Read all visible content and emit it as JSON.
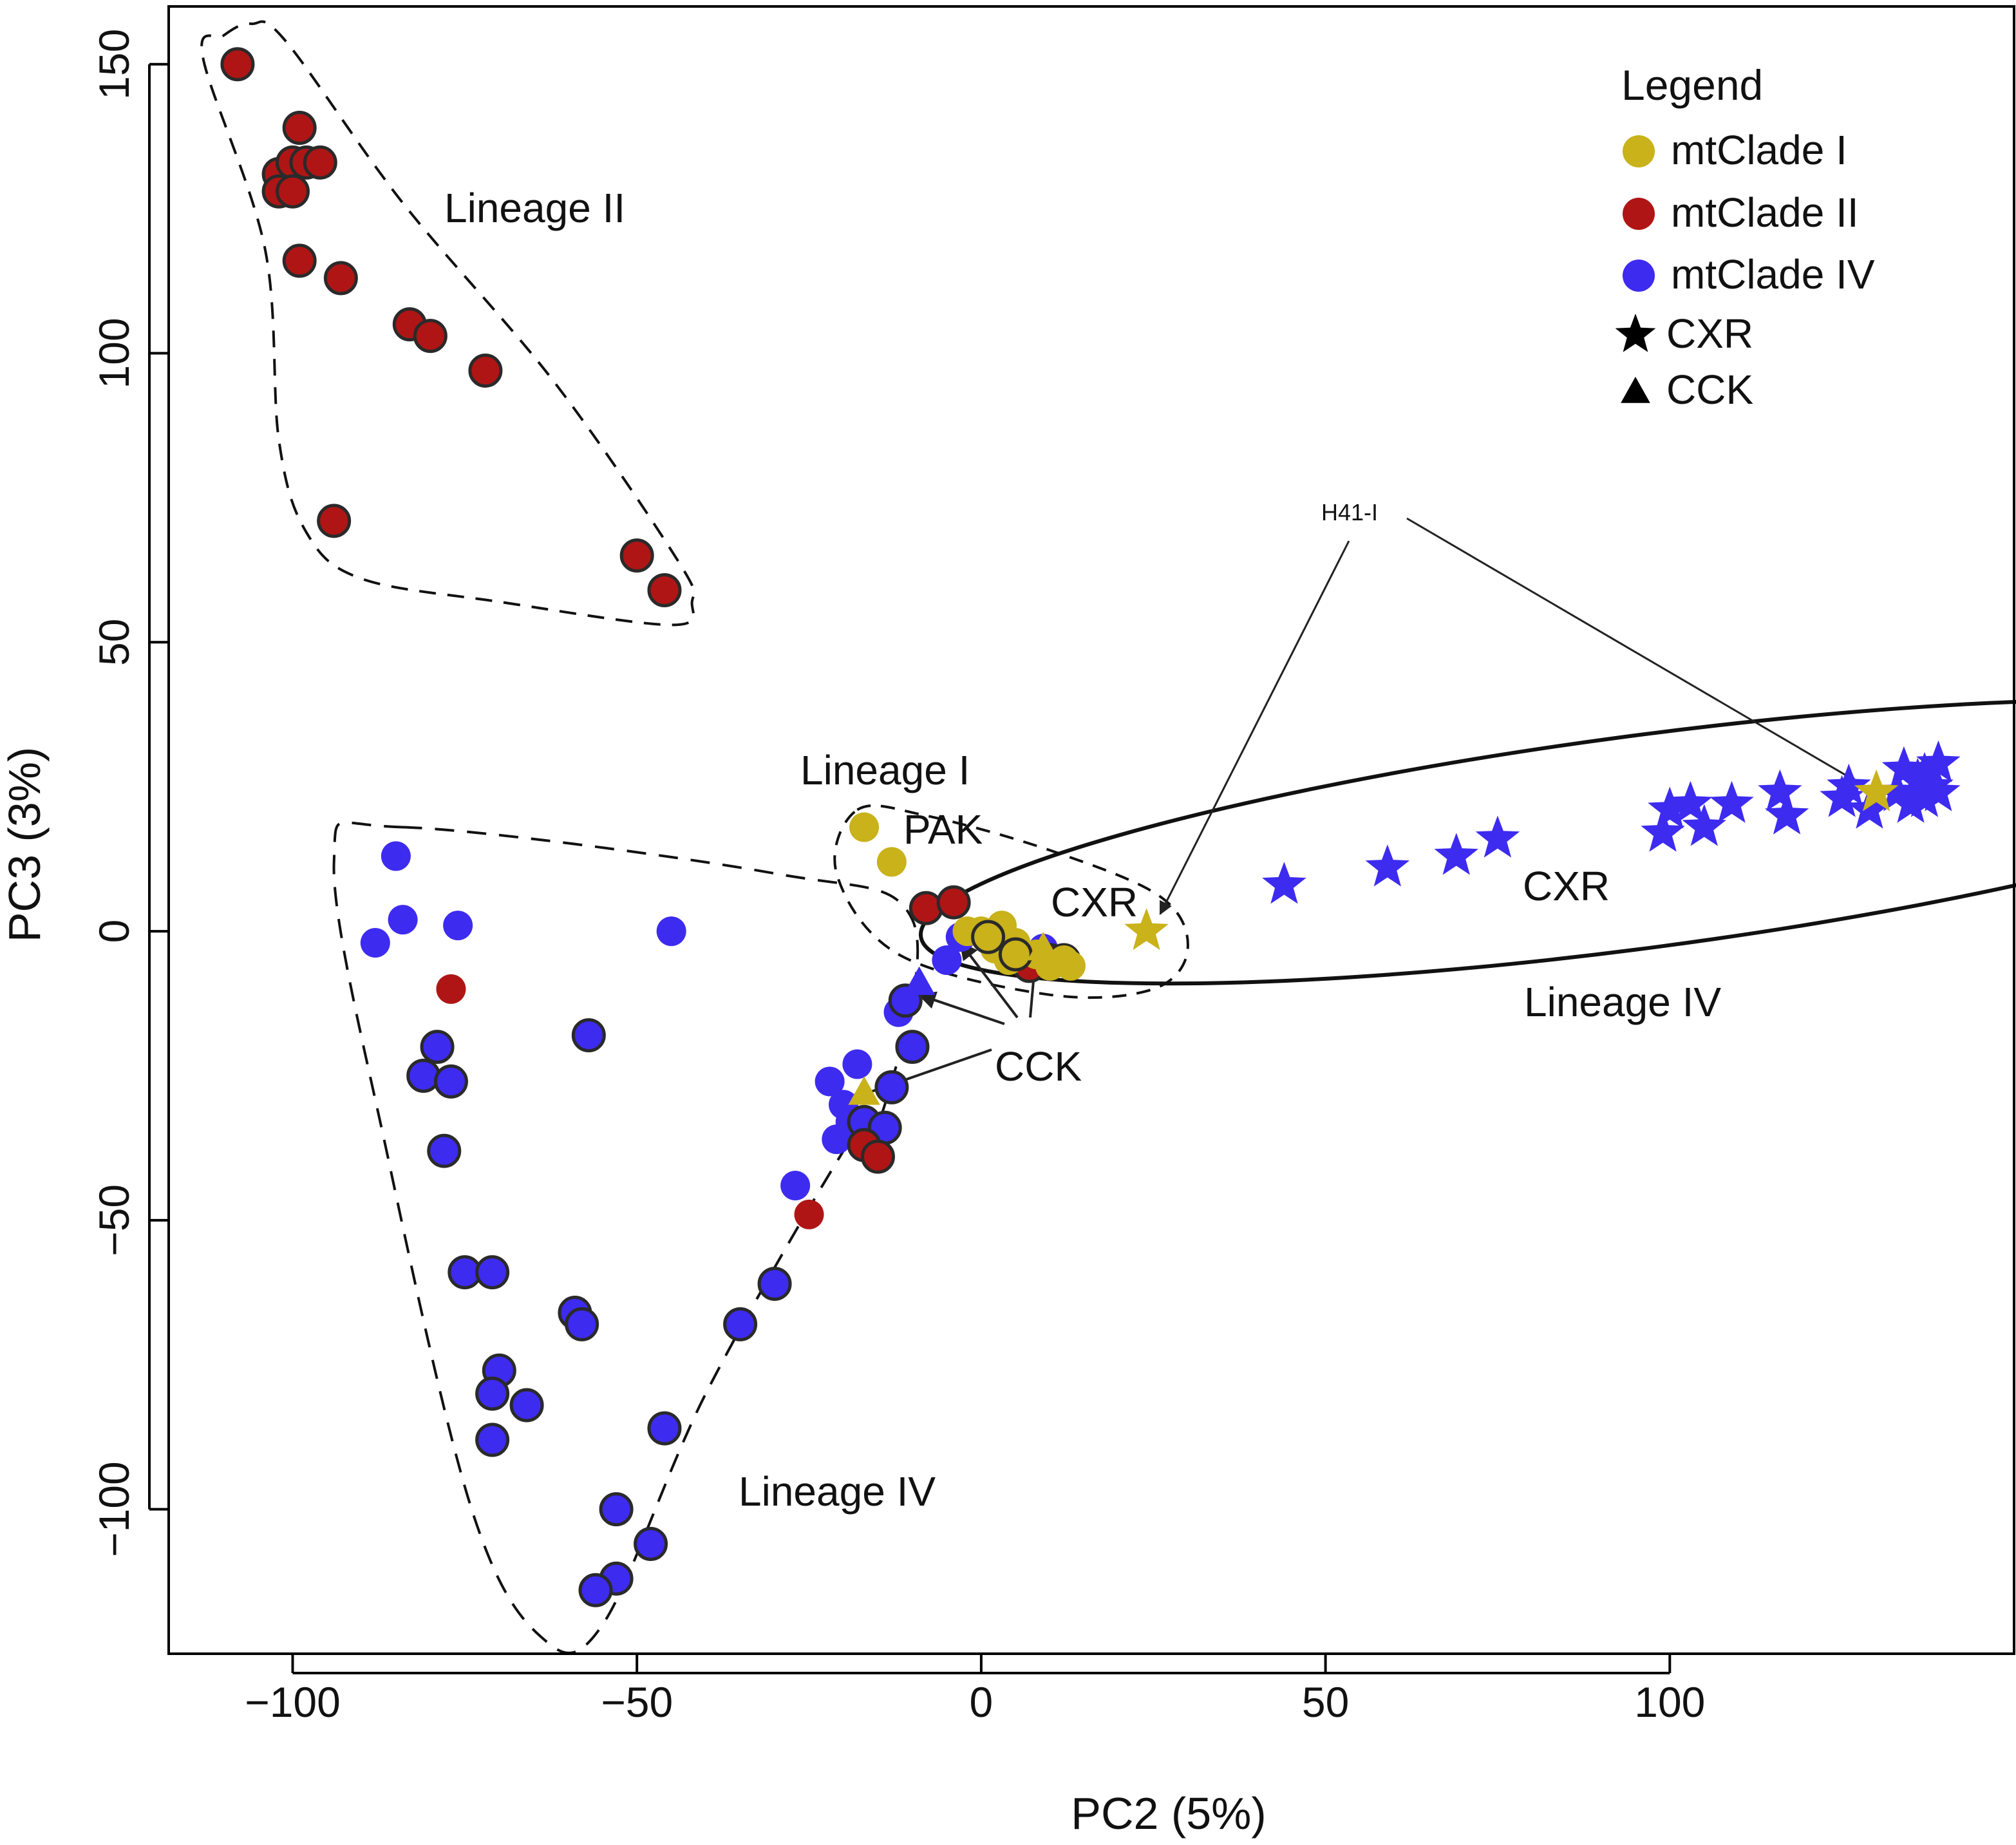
{
  "chart_data": {
    "type": "scatter",
    "title": "",
    "xlabel": "PC2 (5%)",
    "ylabel": "PC3 (3%)",
    "xlim": [
      -118,
      150
    ],
    "ylim": [
      -125,
      160
    ],
    "xticks": [
      -100,
      -50,
      0,
      50,
      100
    ],
    "xtick_labels": [
      "−100",
      "−50",
      "0",
      "50",
      "100"
    ],
    "yticks": [
      -100,
      -50,
      0,
      50,
      100,
      150
    ],
    "ytick_labels": [
      "−100",
      "−50",
      "0",
      "50",
      "100",
      "150"
    ],
    "grid": false,
    "colors": {
      "mtclade_i": "#C9B21A",
      "mtclade_ii": "#B01515",
      "mtclade_iv": "#3D2BF0"
    },
    "legend": {
      "title": "Legend",
      "position": "top-right",
      "entries": [
        {
          "label": "mtClade I",
          "marker": "circle",
          "color": "#C9B21A"
        },
        {
          "label": "mtClade II",
          "marker": "circle",
          "color": "#B01515"
        },
        {
          "label": "mtClade IV",
          "marker": "circle",
          "color": "#3D2BF0"
        },
        {
          "label": "CXR",
          "marker": "star",
          "color": "#000000"
        },
        {
          "label": "CCK",
          "marker": "triangle",
          "color": "#000000"
        }
      ]
    },
    "annotations": {
      "lineage_ii": "Lineage II",
      "lineage_i": "Lineage I",
      "pak": "PAK",
      "cxr_small": "CXR",
      "cxr_large": "CXR",
      "lineage_iv_right": "Lineage IV",
      "cck": "CCK",
      "lineage_iv_left": "Lineage IV",
      "h41": "H41-I"
    },
    "series": [
      {
        "name": "mtClade II (Lineage II)",
        "clade": "II",
        "marker": "circle",
        "outlined": true,
        "points": [
          [
            -108,
            150
          ],
          [
            -102,
            131
          ],
          [
            -100,
            133
          ],
          [
            -102,
            128
          ],
          [
            -100,
            128
          ],
          [
            -98,
            133
          ],
          [
            -96,
            133
          ],
          [
            -99,
            139
          ],
          [
            -99,
            116
          ],
          [
            -93,
            113
          ],
          [
            -83,
            105
          ],
          [
            -80,
            103
          ],
          [
            -72,
            97
          ],
          [
            -94,
            71
          ],
          [
            -50,
            65
          ],
          [
            -46,
            59
          ]
        ]
      },
      {
        "name": "mtClade II",
        "clade": "II",
        "marker": "circle",
        "outlined": true,
        "points": [
          [
            -8,
            4
          ],
          [
            -4,
            5
          ],
          [
            4,
            -4
          ],
          [
            7,
            -6
          ],
          [
            10,
            -5
          ],
          [
            12,
            -5
          ],
          [
            -17,
            -37
          ],
          [
            -15,
            -39
          ]
        ]
      },
      {
        "name": "mtClade II",
        "clade": "II",
        "marker": "circle",
        "outlined": false,
        "points": [
          [
            -77,
            -10
          ],
          [
            -25,
            -49
          ]
        ]
      },
      {
        "name": "mtClade IV",
        "clade": "IV",
        "marker": "circle",
        "outlined": false,
        "points": [
          [
            -85,
            13
          ],
          [
            -88,
            -2
          ],
          [
            -84,
            2
          ],
          [
            -76,
            1
          ],
          [
            -45,
            0
          ],
          [
            -27,
            -44
          ],
          [
            -22,
            -26
          ],
          [
            -18,
            -23
          ],
          [
            -20,
            -30
          ],
          [
            -21,
            -36
          ],
          [
            -19,
            -33
          ],
          [
            -12,
            -14
          ],
          [
            -5,
            -5
          ],
          [
            -3,
            -1
          ],
          [
            9,
            -3
          ]
        ]
      },
      {
        "name": "mtClade IV",
        "clade": "IV",
        "marker": "circle",
        "outlined": true,
        "points": [
          [
            -57,
            -18
          ],
          [
            -79,
            -20
          ],
          [
            -81,
            -25
          ],
          [
            -77,
            -26
          ],
          [
            -78,
            -38
          ],
          [
            -75,
            -59
          ],
          [
            -71,
            -59
          ],
          [
            -59,
            -66
          ],
          [
            -58,
            -68
          ],
          [
            -70,
            -76
          ],
          [
            -71,
            -80
          ],
          [
            -66,
            -82
          ],
          [
            -71,
            -88
          ],
          [
            -46,
            -86
          ],
          [
            -30,
            -61
          ],
          [
            -35,
            -68
          ],
          [
            -53,
            -100
          ],
          [
            -48,
            -106
          ],
          [
            -53,
            -112
          ],
          [
            -56,
            -114
          ],
          [
            -10,
            -20
          ],
          [
            -11,
            -12
          ],
          [
            -13,
            -27
          ],
          [
            -17,
            -33
          ],
          [
            -14,
            -34
          ]
        ]
      },
      {
        "name": "mtClade IV",
        "clade": "IV",
        "marker": "triangle",
        "outlined": false,
        "points": [
          [
            -9,
            -9
          ]
        ]
      },
      {
        "name": "mtClade I",
        "clade": "I",
        "marker": "circle",
        "outlined": false,
        "points": [
          [
            -17,
            18
          ],
          [
            -13,
            12
          ],
          [
            -2,
            0
          ],
          [
            1,
            -1
          ],
          [
            3,
            1
          ],
          [
            5,
            -2
          ],
          [
            2,
            -3
          ],
          [
            4,
            -5
          ],
          [
            8,
            -4
          ],
          [
            10,
            -6
          ],
          [
            12,
            -5
          ],
          [
            13,
            -6
          ],
          [
            0,
            0
          ]
        ]
      },
      {
        "name": "mtClade I",
        "clade": "I",
        "marker": "circle",
        "outlined": true,
        "points": [
          [
            1,
            -1
          ],
          [
            5,
            -4
          ]
        ]
      },
      {
        "name": "mtClade I",
        "clade": "I",
        "marker": "triangle",
        "outlined": false,
        "points": [
          [
            -17,
            -28
          ],
          [
            9,
            -3
          ]
        ]
      },
      {
        "name": "mtClade I",
        "clade": "I",
        "marker": "star",
        "outlined": false,
        "points": [
          [
            24,
            0
          ],
          [
            130,
            24
          ]
        ]
      },
      {
        "name": "mtClade IV",
        "clade": "IV",
        "marker": "star",
        "outlined": false,
        "points": [
          [
            44,
            8
          ],
          [
            59,
            11
          ],
          [
            69,
            13
          ],
          [
            75,
            16
          ],
          [
            100,
            21
          ],
          [
            99,
            17
          ],
          [
            103,
            22
          ],
          [
            105,
            18
          ],
          [
            109,
            22
          ],
          [
            116,
            24
          ],
          [
            117,
            20
          ],
          [
            125,
            23
          ],
          [
            126,
            25
          ],
          [
            129,
            21
          ],
          [
            133,
            24
          ],
          [
            134,
            28
          ],
          [
            135,
            22
          ],
          [
            136,
            26
          ],
          [
            137,
            27
          ],
          [
            137,
            23
          ],
          [
            138,
            25
          ],
          [
            139,
            29
          ],
          [
            139,
            24
          ]
        ]
      }
    ]
  }
}
